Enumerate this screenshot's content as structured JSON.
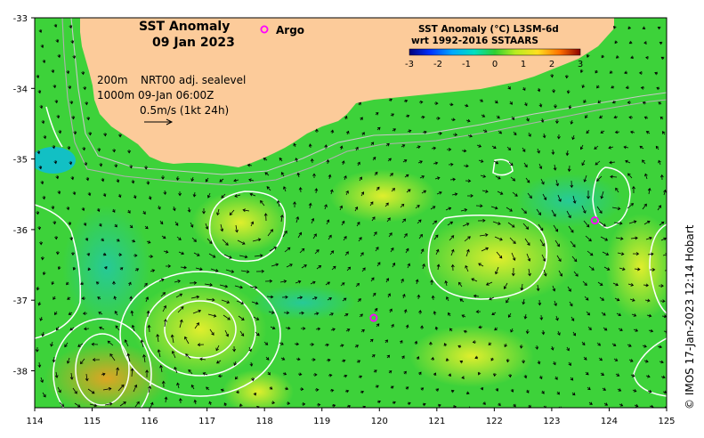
{
  "map": {
    "title_line1": "SST Anomaly",
    "title_line2": "09 Jan 2023",
    "argo_label": "Argo",
    "info": {
      "depth1": "200m",
      "depth2": "1000m",
      "product": "NRT00 adj. sealevel",
      "time": "09-Jan 06:00Z",
      "scale": "0.5m/s (1kt 24h)"
    },
    "colorbar": {
      "title1": "SST Anomaly (°C) L3SM-6d",
      "title2": "wrt 1992-2016 SSTAARS",
      "ticks": [
        "-3",
        "-2",
        "-1",
        "0",
        "1",
        "2",
        "3"
      ]
    },
    "x_ticks": [
      "114",
      "115",
      "116",
      "117",
      "118",
      "119",
      "120",
      "121",
      "122",
      "123",
      "124",
      "125"
    ],
    "y_ticks": [
      "-33",
      "-34",
      "-35",
      "-36",
      "-37",
      "-38"
    ],
    "credit": "© IMOS 17-Jan-2023 12:14 Hobart",
    "colors": {
      "ocean": "#3dd23a",
      "land": "#fccb9a",
      "argo": "#ff00ff",
      "contour": "#ffffff"
    },
    "argo_floats": [
      {
        "lon": 119.9,
        "lat": -37.25
      },
      {
        "lon": 123.75,
        "lat": -35.87
      }
    ]
  }
}
